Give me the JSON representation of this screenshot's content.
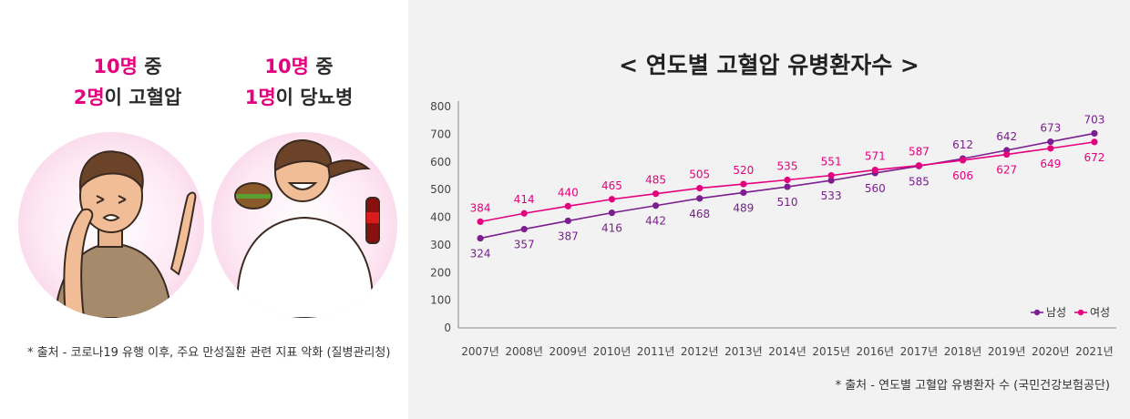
{
  "left": {
    "stat1": {
      "line1_num": "10명",
      "line1_rest": " 중",
      "line2_num": "2명",
      "line2_rest": "이 고혈압"
    },
    "stat2": {
      "line1_num": "10명",
      "line1_rest": " 중",
      "line2_num": "1명",
      "line2_rest": "이 당뇨병"
    },
    "source": "* 출처 - 코로나19 유행 이후, 주요 만성질환 관련 지표 악화 (질병관리청)"
  },
  "right": {
    "title": "< 연도별 고혈압 유병환자수 >",
    "source": "* 출처 - 연도별 고혈압 유병환자 수 (국민건강보험공단)"
  },
  "colors": {
    "male": "#7b1e8f",
    "female": "#e5007f",
    "accent": "#e5007f"
  },
  "chart_data": {
    "type": "line",
    "title": "< 연도별 고혈압 유병환자수 >",
    "categories": [
      "2007년",
      "2008년",
      "2009년",
      "2010년",
      "2011년",
      "2012년",
      "2013년",
      "2014년",
      "2015년",
      "2016년",
      "2017년",
      "2018년",
      "2019년",
      "2020년",
      "2021년"
    ],
    "ylim": [
      0,
      800
    ],
    "yticks": [
      "0",
      "100",
      "200",
      "300",
      "400",
      "500",
      "600",
      "700",
      "800"
    ],
    "grid": false,
    "legend_position": "bottom-right",
    "series": [
      {
        "name": "남성",
        "color": "#7b1e8f",
        "values": [
          324,
          357,
          387,
          416,
          442,
          468,
          489,
          510,
          533,
          560,
          585,
          612,
          642,
          673,
          703
        ]
      },
      {
        "name": "여성",
        "color": "#e5007f",
        "values": [
          384,
          414,
          440,
          465,
          485,
          505,
          520,
          535,
          551,
          571,
          587,
          606,
          627,
          649,
          672
        ]
      }
    ]
  }
}
